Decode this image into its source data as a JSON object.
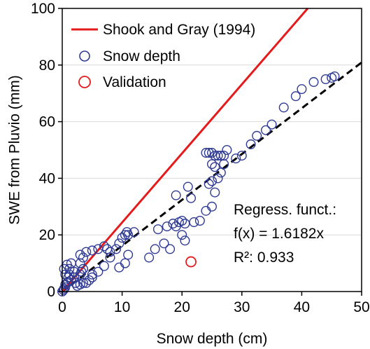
{
  "chart_data": {
    "type": "scatter",
    "xlabel": "Snow depth (cm)",
    "ylabel": "SWE from Pluvio (mm)",
    "xlim": [
      0,
      50
    ],
    "ylim": [
      0,
      100
    ],
    "xticks": [
      "0",
      "10",
      "20",
      "30",
      "40",
      "50"
    ],
    "yticks": [
      "0",
      "20",
      "40",
      "60",
      "80",
      "100"
    ],
    "grid": "horizontal",
    "legend_position": "top-left",
    "legend": [
      {
        "label": "Shook and Gray (1994)",
        "style": "line",
        "color": "#e41a1c"
      },
      {
        "label": "Snow depth",
        "style": "marker",
        "color": "#2e3a94"
      },
      {
        "label": "Validation",
        "style": "marker",
        "color": "#e41a1c"
      }
    ],
    "annotation": {
      "line1": "Regress. funct.:",
      "line2": "f(x) = 1.6182x",
      "line3": "R²: 0.933"
    },
    "series": [
      {
        "name": "Shook and Gray (1994)",
        "kind": "line",
        "color": "#e41a1c",
        "x": [
          0,
          41
        ],
        "y": [
          0,
          100
        ]
      },
      {
        "name": "Regression",
        "kind": "dashed-line",
        "color": "#000000",
        "x": [
          0,
          50
        ],
        "y": [
          0,
          80.91
        ]
      },
      {
        "name": "Snow depth",
        "kind": "marker",
        "color": "#2e3a94",
        "points": [
          [
            0,
            0
          ],
          [
            0.2,
            0.5
          ],
          [
            0.3,
            1
          ],
          [
            0.5,
            1.5
          ],
          [
            0.5,
            2.5
          ],
          [
            0.8,
            3
          ],
          [
            1,
            3.5
          ],
          [
            1,
            5
          ],
          [
            1.2,
            6
          ],
          [
            1.5,
            4
          ],
          [
            0.5,
            6
          ],
          [
            0.3,
            8
          ],
          [
            0.8,
            9.5
          ],
          [
            1.2,
            8
          ],
          [
            1.5,
            10
          ],
          [
            2,
            7
          ],
          [
            2,
            5
          ],
          [
            2.2,
            3
          ],
          [
            2.5,
            2
          ],
          [
            3,
            2.5
          ],
          [
            3.5,
            3
          ],
          [
            4,
            3
          ],
          [
            4.5,
            4
          ],
          [
            5,
            5
          ],
          [
            3,
            6
          ],
          [
            3.2,
            7
          ],
          [
            3.5,
            8
          ],
          [
            3,
            10
          ],
          [
            3.5,
            12
          ],
          [
            3,
            13
          ],
          [
            4,
            14
          ],
          [
            5,
            14.5
          ],
          [
            6,
            15
          ],
          [
            7,
            16
          ],
          [
            7.5,
            15
          ],
          [
            8,
            14
          ],
          [
            9,
            15
          ],
          [
            9.5,
            17
          ],
          [
            10,
            19
          ],
          [
            10.5,
            20
          ],
          [
            10.8,
            21
          ],
          [
            11,
            20
          ],
          [
            12,
            21
          ],
          [
            11,
            13
          ],
          [
            10.5,
            10
          ],
          [
            9.5,
            8.5
          ],
          [
            8,
            12
          ],
          [
            7,
            9
          ],
          [
            6,
            7
          ],
          [
            5,
            6
          ],
          [
            14.5,
            12
          ],
          [
            15.5,
            15
          ],
          [
            16,
            22
          ],
          [
            17,
            17
          ],
          [
            17.5,
            23
          ],
          [
            18,
            15
          ],
          [
            19,
            23
          ],
          [
            18.5,
            24
          ],
          [
            19.5,
            24.5
          ],
          [
            20,
            25
          ],
          [
            20.5,
            24
          ],
          [
            19,
            34
          ],
          [
            20,
            20
          ],
          [
            20.5,
            18
          ],
          [
            21.5,
            33
          ],
          [
            21,
            37
          ],
          [
            22,
            24.5
          ],
          [
            23,
            25
          ],
          [
            24,
            28.5
          ],
          [
            25,
            30
          ],
          [
            25.5,
            35
          ],
          [
            25.5,
            44
          ],
          [
            25,
            45
          ],
          [
            26,
            48
          ],
          [
            24,
            49
          ],
          [
            24.5,
            49
          ],
          [
            25,
            49
          ],
          [
            25.5,
            48
          ],
          [
            26.5,
            48
          ],
          [
            27,
            48
          ],
          [
            27.5,
            50
          ],
          [
            27,
            45
          ],
          [
            26.5,
            42
          ],
          [
            26,
            40
          ],
          [
            25,
            39
          ],
          [
            24.5,
            38
          ],
          [
            29,
            47
          ],
          [
            30,
            48
          ],
          [
            31.5,
            52
          ],
          [
            32.5,
            55
          ],
          [
            34,
            57
          ],
          [
            35,
            59
          ],
          [
            37,
            65
          ],
          [
            39,
            69
          ],
          [
            40,
            71.5
          ],
          [
            42,
            74
          ],
          [
            44,
            75
          ],
          [
            45,
            75.5
          ],
          [
            45.5,
            76
          ]
        ]
      },
      {
        "name": "Validation",
        "kind": "marker",
        "color": "#e41a1c",
        "points": [
          [
            21.5,
            10.5
          ]
        ]
      }
    ]
  }
}
